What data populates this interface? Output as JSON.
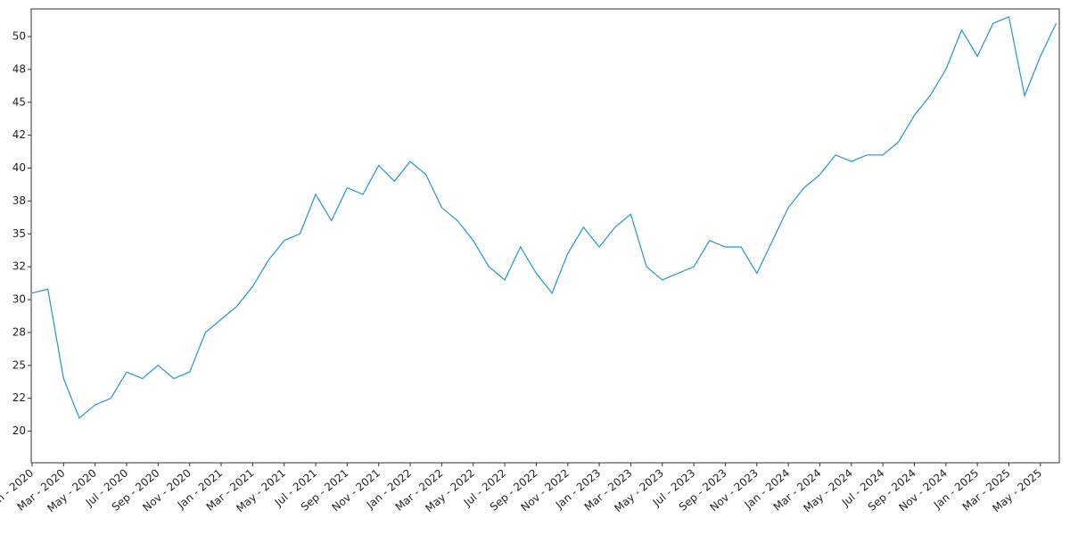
{
  "chart_data": {
    "type": "line",
    "color": "#1f95d6",
    "x": [
      "2020-01",
      "2020-02",
      "2020-03",
      "2020-04",
      "2020-05",
      "2020-06",
      "2020-07",
      "2020-08",
      "2020-09",
      "2020-10",
      "2020-11",
      "2020-12",
      "2021-01",
      "2021-02",
      "2021-03",
      "2021-04",
      "2021-05",
      "2021-06",
      "2021-07",
      "2021-08",
      "2021-09",
      "2021-10",
      "2021-11",
      "2021-12",
      "2022-01",
      "2022-02",
      "2022-03",
      "2022-04",
      "2022-05",
      "2022-06",
      "2022-07",
      "2022-08",
      "2022-09",
      "2022-10",
      "2022-11",
      "2022-12",
      "2023-01",
      "2023-02",
      "2023-03",
      "2023-04",
      "2023-05",
      "2023-06",
      "2023-07",
      "2023-08",
      "2023-09",
      "2023-10",
      "2023-11",
      "2023-12",
      "2024-01",
      "2024-02",
      "2024-03",
      "2024-04",
      "2024-05",
      "2024-06",
      "2024-07",
      "2024-08",
      "2024-09",
      "2024-10",
      "2024-11",
      "2024-12",
      "2025-01",
      "2025-02",
      "2025-03",
      "2025-04",
      "2025-05",
      "2025-06"
    ],
    "values": [
      30.5,
      30.8,
      24,
      21,
      22,
      22.5,
      24.5,
      24,
      25,
      24,
      24.5,
      27.5,
      28.5,
      29.5,
      31,
      33,
      34.5,
      35,
      38,
      36,
      38.5,
      38,
      40.2,
      39,
      40.5,
      39.5,
      37,
      36,
      34.5,
      32.5,
      31.5,
      34,
      32,
      30.5,
      33.5,
      35.5,
      34,
      35.5,
      36.5,
      32.5,
      31.5,
      32,
      32.5,
      34.5,
      34,
      34,
      32,
      34.5,
      37,
      38.5,
      39.5,
      41,
      40.5,
      41,
      41,
      42,
      44,
      45.5,
      47.5,
      50.5,
      48.5,
      51,
      51.5,
      45.5,
      48.5,
      51
    ],
    "xlim": [
      "2020-01",
      "2025-06"
    ],
    "xticks": [
      {
        "value": "2020-01",
        "label": "Jan - 2020"
      },
      {
        "value": "2020-03",
        "label": "Mar - 2020"
      },
      {
        "value": "2020-05",
        "label": "May - 2020"
      },
      {
        "value": "2020-07",
        "label": "Jul - 2020"
      },
      {
        "value": "2020-09",
        "label": "Sep - 2020"
      },
      {
        "value": "2020-11",
        "label": "Nov - 2020"
      },
      {
        "value": "2021-01",
        "label": "Jan - 2021"
      },
      {
        "value": "2021-03",
        "label": "Mar - 2021"
      },
      {
        "value": "2021-05",
        "label": "May - 2021"
      },
      {
        "value": "2021-07",
        "label": "Jul - 2021"
      },
      {
        "value": "2021-09",
        "label": "Sep - 2021"
      },
      {
        "value": "2021-11",
        "label": "Nov - 2021"
      },
      {
        "value": "2022-01",
        "label": "Jan - 2022"
      },
      {
        "value": "2022-03",
        "label": "Mar - 2022"
      },
      {
        "value": "2022-05",
        "label": "May - 2022"
      },
      {
        "value": "2022-07",
        "label": "Jul - 2022"
      },
      {
        "value": "2022-09",
        "label": "Sep - 2022"
      },
      {
        "value": "2022-11",
        "label": "Nov - 2022"
      },
      {
        "value": "2023-01",
        "label": "Jan - 2023"
      },
      {
        "value": "2023-03",
        "label": "Mar - 2023"
      },
      {
        "value": "2023-05",
        "label": "May - 2023"
      },
      {
        "value": "2023-07",
        "label": "Jul - 2023"
      },
      {
        "value": "2023-09",
        "label": "Sep - 2023"
      },
      {
        "value": "2023-11",
        "label": "Nov - 2023"
      },
      {
        "value": "2024-01",
        "label": "Jan - 2024"
      },
      {
        "value": "2024-03",
        "label": "Mar - 2024"
      },
      {
        "value": "2024-05",
        "label": "May - 2024"
      },
      {
        "value": "2024-07",
        "label": "Jul - 2024"
      },
      {
        "value": "2024-09",
        "label": "Sep - 2024"
      },
      {
        "value": "2024-11",
        "label": "Nov - 2024"
      },
      {
        "value": "2025-01",
        "label": "Jan - 2025"
      },
      {
        "value": "2025-03",
        "label": "Mar - 2025"
      },
      {
        "value": "2025-05",
        "label": "May - 2025"
      }
    ],
    "ylim": [
      17.6,
      52.1
    ],
    "yticks": [
      20,
      {
        "value": 22.5,
        "label": "22"
      },
      25,
      {
        "value": 27.5,
        "label": "28"
      },
      30,
      {
        "value": 32.5,
        "label": "32"
      },
      35,
      {
        "value": 37.5,
        "label": "38"
      },
      40,
      {
        "value": 42.5,
        "label": "42"
      },
      45,
      {
        "value": 47.5,
        "label": "48"
      },
      50
    ]
  }
}
